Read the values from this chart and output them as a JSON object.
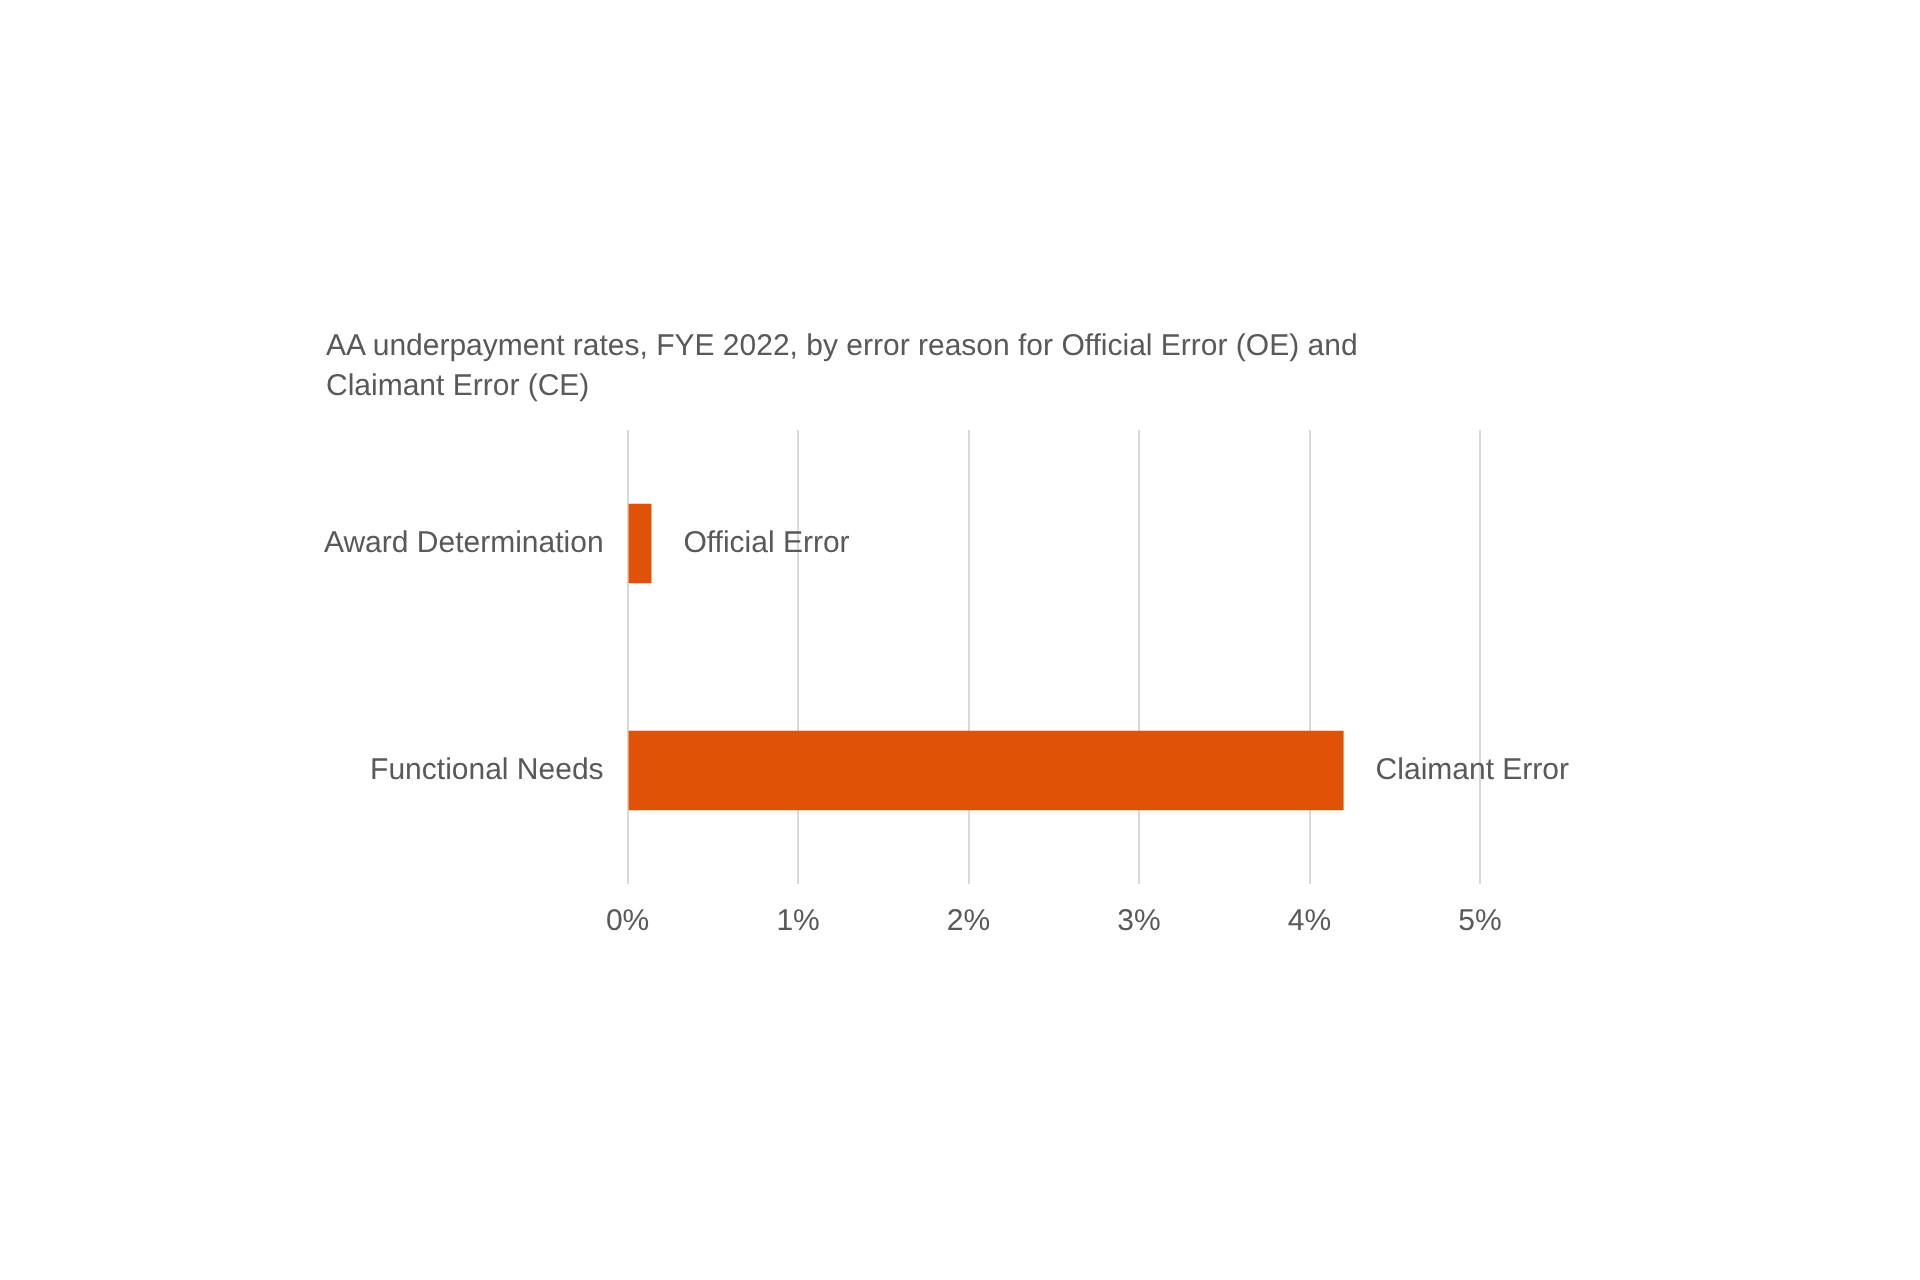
{
  "chart_data": {
    "type": "bar",
    "orientation": "horizontal",
    "title": "AA underpayment rates, FYE 2022, by error reason for Official Error (OE) and Claimant Error (CE)",
    "categories": [
      "Award Determination",
      "Functional Needs"
    ],
    "values": [
      0.14,
      4.2
    ],
    "color": "#e05206",
    "xlim": [
      0,
      5
    ],
    "xticks": [
      {
        "value": 0,
        "label": "0%"
      },
      {
        "value": 1,
        "label": "1%"
      },
      {
        "value": 2,
        "label": "2%"
      },
      {
        "value": 3,
        "label": "3%"
      },
      {
        "value": 4,
        "label": "4%"
      },
      {
        "value": 5,
        "label": "5%"
      }
    ],
    "grid": "x",
    "annotations": [
      {
        "text": "Official Error",
        "x": 0.14,
        "y": "Award Determination"
      },
      {
        "text": "Claimant Error",
        "x": 4.2,
        "y": "Functional Needs"
      }
    ]
  }
}
